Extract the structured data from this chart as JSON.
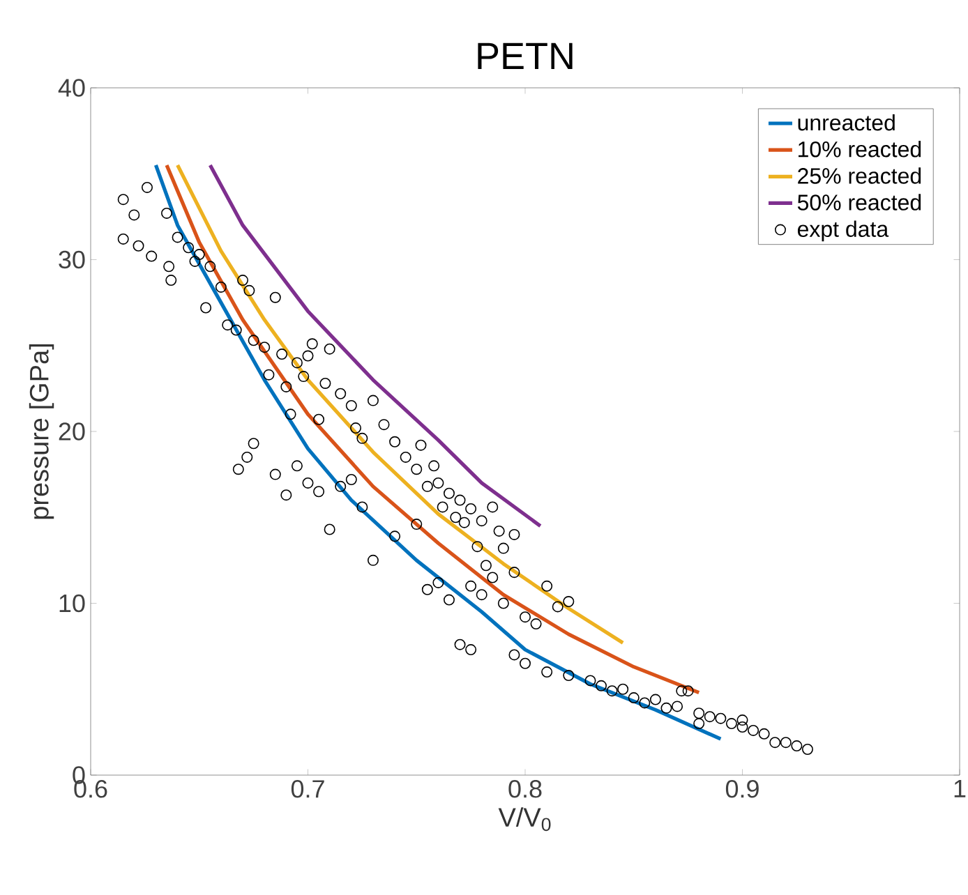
{
  "chart_data": {
    "type": "line",
    "title": "PETN",
    "xlabel": "V/V$_{0}$",
    "ylabel": "pressure [GPa]",
    "xlim": [
      0.6,
      1
    ],
    "ylim": [
      0,
      40
    ],
    "xticks": [
      0.6,
      0.7,
      0.8,
      0.9,
      1
    ],
    "yticks": [
      0,
      10,
      20,
      30,
      40
    ],
    "grid": false,
    "legend": "top right",
    "series": [
      {
        "name": "unreacted",
        "color": "#0072bd",
        "marker": "none",
        "x": [
          0.63,
          0.64,
          0.66,
          0.68,
          0.7,
          0.72,
          0.75,
          0.78,
          0.8,
          0.83,
          0.86,
          0.89
        ],
        "values": [
          35.5,
          32,
          27.5,
          23,
          19,
          16,
          12.5,
          9.5,
          7.3,
          5.3,
          3.8,
          2.1
        ]
      },
      {
        "name": "10% reacted",
        "color": "#d95319",
        "marker": "none",
        "x": [
          0.635,
          0.65,
          0.67,
          0.7,
          0.73,
          0.76,
          0.79,
          0.82,
          0.85,
          0.88
        ],
        "values": [
          35.5,
          31,
          26.5,
          21,
          16.8,
          13.5,
          10.5,
          8.2,
          6.3,
          4.8
        ]
      },
      {
        "name": "25% reacted",
        "color": "#edb120",
        "marker": "none",
        "x": [
          0.64,
          0.66,
          0.68,
          0.7,
          0.73,
          0.76,
          0.79,
          0.82,
          0.845
        ],
        "values": [
          35.5,
          30.5,
          26.5,
          23,
          18.8,
          15.2,
          12.3,
          9.7,
          7.7
        ]
      },
      {
        "name": "50% reacted",
        "color": "#7e2f8e",
        "marker": "none",
        "x": [
          0.655,
          0.67,
          0.7,
          0.73,
          0.76,
          0.78,
          0.807
        ],
        "values": [
          35.5,
          32,
          27,
          23,
          19.5,
          17,
          14.5
        ]
      },
      {
        "name": "expt data",
        "type": "scatter",
        "color": "#000000",
        "marker": "circle",
        "x": [
          0.615,
          0.615,
          0.62,
          0.622,
          0.628,
          0.626,
          0.635,
          0.64,
          0.636,
          0.637,
          0.645,
          0.65,
          0.655,
          0.648,
          0.653,
          0.66,
          0.663,
          0.667,
          0.67,
          0.673,
          0.675,
          0.68,
          0.682,
          0.685,
          0.688,
          0.69,
          0.692,
          0.695,
          0.698,
          0.7,
          0.702,
          0.705,
          0.708,
          0.71,
          0.715,
          0.72,
          0.722,
          0.725,
          0.73,
          0.735,
          0.74,
          0.745,
          0.75,
          0.752,
          0.755,
          0.758,
          0.76,
          0.762,
          0.765,
          0.768,
          0.77,
          0.772,
          0.775,
          0.778,
          0.78,
          0.782,
          0.785,
          0.788,
          0.79,
          0.775,
          0.78,
          0.785,
          0.79,
          0.795,
          0.8,
          0.805,
          0.81,
          0.815,
          0.82,
          0.795,
          0.672,
          0.668,
          0.675,
          0.685,
          0.69,
          0.695,
          0.7,
          0.705,
          0.71,
          0.715,
          0.72,
          0.725,
          0.73,
          0.74,
          0.75,
          0.755,
          0.76,
          0.765,
          0.77,
          0.775,
          0.795,
          0.8,
          0.81,
          0.82,
          0.83,
          0.835,
          0.84,
          0.845,
          0.85,
          0.855,
          0.86,
          0.865,
          0.87,
          0.872,
          0.875,
          0.88,
          0.885,
          0.89,
          0.895,
          0.9,
          0.905,
          0.91,
          0.915,
          0.92,
          0.925,
          0.93,
          0.9,
          0.88
        ],
        "values": [
          33.5,
          31.2,
          32.6,
          30.8,
          30.2,
          34.2,
          32.7,
          31.3,
          29.6,
          28.8,
          30.7,
          30.3,
          29.6,
          29.9,
          27.2,
          28.4,
          26.2,
          25.9,
          28.8,
          28.2,
          25.3,
          24.9,
          23.3,
          27.8,
          24.5,
          22.6,
          21.0,
          24.0,
          23.2,
          24.4,
          25.1,
          20.7,
          22.8,
          24.8,
          22.2,
          21.5,
          20.2,
          19.6,
          21.8,
          20.4,
          19.4,
          18.5,
          17.8,
          19.2,
          16.8,
          18.0,
          17.0,
          15.6,
          16.4,
          15.0,
          16.0,
          14.7,
          15.5,
          13.3,
          14.8,
          12.2,
          15.6,
          14.2,
          13.2,
          11.0,
          10.5,
          11.5,
          10.0,
          11.8,
          9.2,
          8.8,
          11.0,
          9.8,
          10.1,
          14.0,
          18.5,
          17.8,
          19.3,
          17.5,
          16.3,
          18.0,
          17.0,
          16.5,
          14.3,
          16.8,
          17.2,
          15.6,
          12.5,
          13.9,
          14.6,
          10.8,
          11.2,
          10.2,
          7.6,
          7.3,
          7.0,
          6.5,
          6.0,
          5.8,
          5.5,
          5.2,
          4.9,
          5.0,
          4.5,
          4.2,
          4.4,
          3.9,
          4.0,
          4.9,
          4.9,
          3.6,
          3.4,
          3.3,
          3.0,
          2.8,
          2.6,
          2.4,
          1.9,
          1.9,
          1.7,
          1.5,
          3.2,
          3.0
        ]
      }
    ]
  }
}
